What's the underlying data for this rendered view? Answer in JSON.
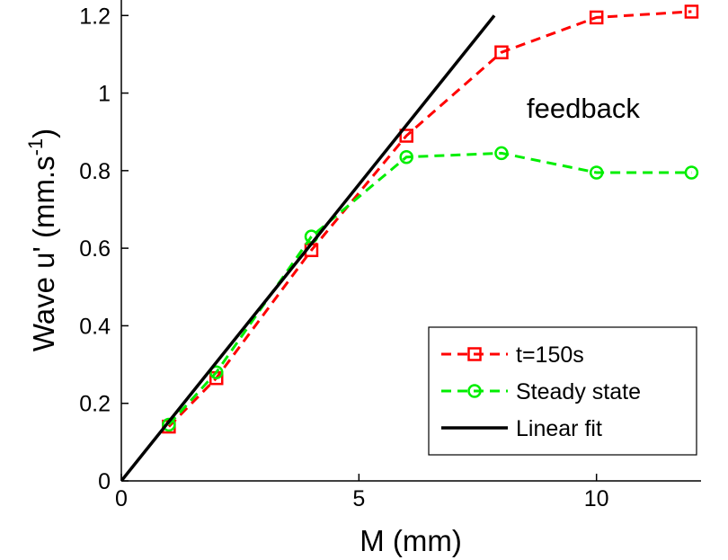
{
  "chart_data": {
    "type": "line",
    "title": "",
    "xlabel": "M (mm)",
    "ylabel": "Wave u' (mm.s",
    "ylabel_sup": "-1",
    "ylabel_close": ")",
    "xlim": [
      0,
      12.2
    ],
    "ylim": [
      0,
      1.24
    ],
    "xticks": [
      0,
      5,
      10
    ],
    "xtick_labels": [
      "0",
      "5",
      "10"
    ],
    "yticks": [
      0,
      0.2,
      0.4,
      0.6,
      0.8,
      1,
      1.2
    ],
    "ytick_labels": [
      "0",
      "0.2",
      "0.4",
      "0.6",
      "0.8",
      "1",
      "1.2"
    ],
    "grid": false,
    "legend_position": "bottom-right",
    "annotation": "feedback",
    "series": [
      {
        "name": "t=150s",
        "color": "#ff0000",
        "line_style": "dashed",
        "marker": "square",
        "x": [
          1,
          2,
          4,
          6,
          8,
          10,
          12
        ],
        "y": [
          0.14,
          0.265,
          0.595,
          0.89,
          1.105,
          1.195,
          1.21
        ]
      },
      {
        "name": "Steady state",
        "color": "#00ee00",
        "line_style": "dashed",
        "marker": "circle",
        "x": [
          1,
          2,
          4,
          6,
          8,
          10,
          12
        ],
        "y": [
          0.145,
          0.28,
          0.63,
          0.835,
          0.845,
          0.795,
          0.795
        ]
      },
      {
        "name": "Linear fit",
        "color": "#000000",
        "line_style": "solid",
        "marker": "none",
        "x": [
          0,
          7.85
        ],
        "y": [
          0,
          1.2
        ]
      }
    ]
  }
}
